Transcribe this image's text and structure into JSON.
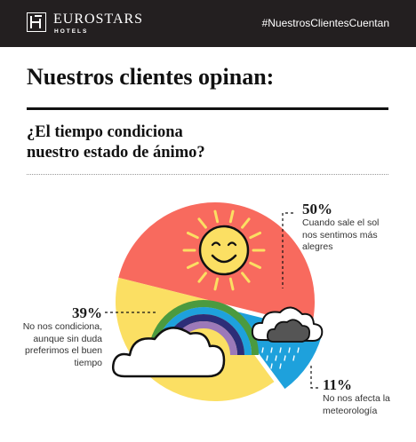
{
  "header": {
    "brand_name": "EUROSTARS",
    "brand_sub": "HOTELS",
    "hashtag": "#NuestrosClientesCuentan"
  },
  "title": "Nuestros clientes opinan:",
  "question_line1": "¿El tiempo condiciona",
  "question_line2": "nuestro estado de ánimo?",
  "icons": [
    "eurostars-logo-icon",
    "sun-icon",
    "rainbow-icon",
    "cloud-icon",
    "rain-cloud-icon"
  ],
  "colors": {
    "topbar": "#231f20",
    "slice_sunny": "#f86a5e",
    "slice_neutral": "#fbdf63",
    "slice_rain": "#1ea1dc"
  },
  "chart_data": {
    "type": "pie",
    "slices": [
      {
        "value": 50,
        "label": "50%",
        "text_lines": [
          "Cuando sale el sol",
          "nos sentimos más",
          "alegres"
        ]
      },
      {
        "value": 11,
        "label": "11%",
        "text_lines": [
          "No nos afecta la",
          "meteorología"
        ]
      },
      {
        "value": 39,
        "label": "39%",
        "text_lines": [
          "No nos condiciona,",
          "aunque sin duda",
          "preferimos el buen",
          "tiempo"
        ]
      }
    ]
  }
}
